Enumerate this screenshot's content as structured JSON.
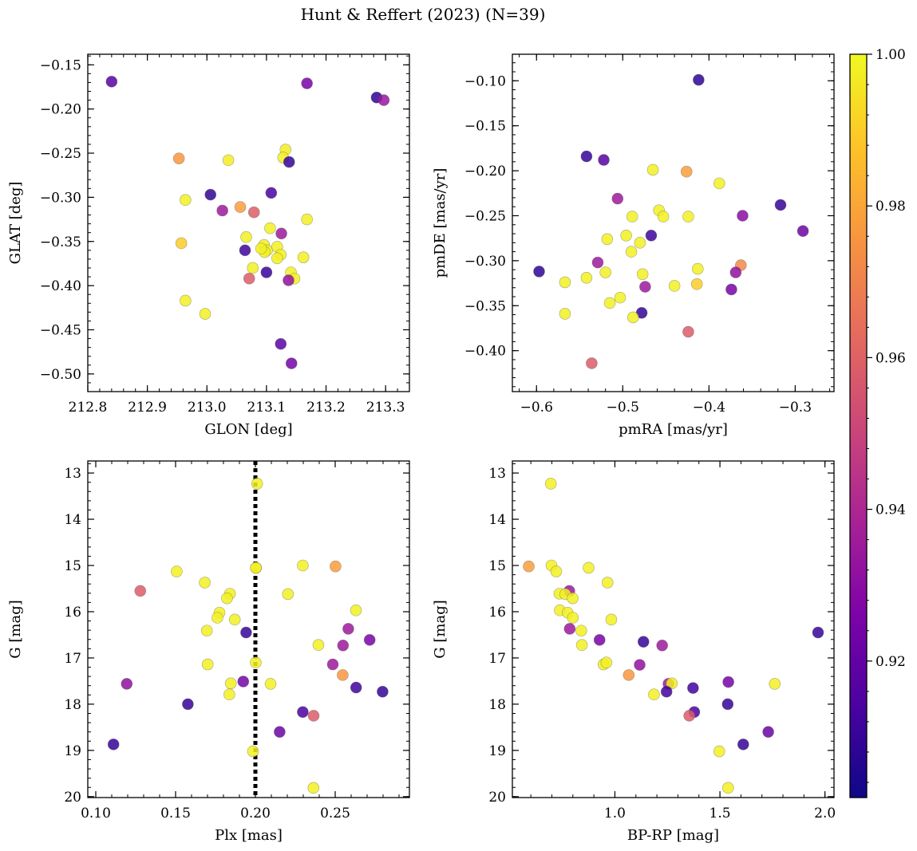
{
  "figure": {
    "title": "Hunt & Reffert (2023) (N=39)"
  },
  "colorbar": {
    "min": 0.902,
    "max": 1.0,
    "ticks": [
      0.92,
      0.94,
      0.96,
      0.98,
      1.0
    ],
    "tick_labels": [
      "0.92",
      "0.94",
      "0.96",
      "0.98",
      "1.00"
    ],
    "colormap": "plasma"
  },
  "chart_data": [
    {
      "type": "scatter",
      "xlabel": "GLON [deg]",
      "ylabel": "GLAT [deg]",
      "xlim": [
        212.8,
        213.34
      ],
      "ylim": [
        -0.52,
        -0.138
      ],
      "xticks": [
        212.8,
        212.9,
        213.0,
        213.1,
        213.2,
        213.3
      ],
      "xtick_labels": [
        "212.8",
        "212.9",
        "213.0",
        "213.1",
        "213.2",
        "213.3"
      ],
      "yticks": [
        -0.15,
        -0.2,
        -0.25,
        -0.3,
        -0.35,
        -0.4,
        -0.45,
        -0.5
      ],
      "ytick_labels": [
        "−0.15",
        "−0.20",
        "−0.25",
        "−0.30",
        "−0.35",
        "−0.40",
        "−0.45",
        "−0.50"
      ],
      "x": [
        212.84,
        213.168,
        213.285,
        213.297,
        212.953,
        213.036,
        213.132,
        213.128,
        213.138,
        213.006,
        213.108,
        212.964,
        213.026,
        213.056,
        213.079,
        213.168,
        213.125,
        213.066,
        213.096,
        213.101,
        213.118,
        212.957,
        213.097,
        213.064,
        213.106,
        213.124,
        213.118,
        213.162,
        213.141,
        213.077,
        213.147,
        213.1,
        213.071,
        213.137,
        212.964,
        212.997,
        213.124,
        213.142,
        213.091
      ],
      "y": [
        -0.169,
        -0.171,
        -0.187,
        -0.19,
        -0.256,
        -0.258,
        -0.246,
        -0.255,
        -0.26,
        -0.297,
        -0.295,
        -0.303,
        -0.315,
        -0.311,
        -0.317,
        -0.325,
        -0.341,
        -0.345,
        -0.354,
        -0.36,
        -0.356,
        -0.352,
        -0.362,
        -0.36,
        -0.335,
        -0.365,
        -0.369,
        -0.368,
        -0.385,
        -0.38,
        -0.392,
        -0.385,
        -0.392,
        -0.394,
        -0.417,
        -0.432,
        -0.466,
        -0.488,
        -0.358
      ],
      "c": [
        0.917,
        0.925,
        0.908,
        0.934,
        0.976,
        0.997,
        0.997,
        0.998,
        0.91,
        0.909,
        0.914,
        0.998,
        0.935,
        0.978,
        0.959,
        0.998,
        0.935,
        0.998,
        0.998,
        0.998,
        0.998,
        0.99,
        0.998,
        0.912,
        0.998,
        0.998,
        0.998,
        0.998,
        0.998,
        0.998,
        0.998,
        0.91,
        0.958,
        0.932,
        0.998,
        0.998,
        0.918,
        0.924,
        0.998
      ]
    },
    {
      "type": "scatter",
      "xlabel": "pmRA [mas/yr]",
      "ylabel": "pmDE [mas/yr]",
      "xlim": [
        -0.628,
        -0.255
      ],
      "ylim": [
        -0.4455,
        -0.0705
      ],
      "xticks": [
        -0.6,
        -0.5,
        -0.4,
        -0.3
      ],
      "xtick_labels": [
        "−0.6",
        "−0.5",
        "−0.4",
        "−0.3"
      ],
      "yticks": [
        -0.1,
        -0.15,
        -0.2,
        -0.25,
        -0.3,
        -0.35,
        -0.4
      ],
      "ytick_labels": [
        "−0.10",
        "−0.15",
        "−0.20",
        "−0.25",
        "−0.30",
        "−0.35",
        "−0.40"
      ],
      "x": [
        -0.412,
        -0.542,
        -0.522,
        -0.465,
        -0.426,
        -0.388,
        -0.506,
        -0.317,
        -0.291,
        -0.361,
        -0.458,
        -0.489,
        -0.467,
        -0.453,
        -0.424,
        -0.518,
        -0.496,
        -0.48,
        -0.49,
        -0.597,
        -0.529,
        -0.413,
        -0.363,
        -0.369,
        -0.52,
        -0.567,
        -0.542,
        -0.477,
        -0.474,
        -0.44,
        -0.414,
        -0.374,
        -0.503,
        -0.515,
        -0.567,
        -0.478,
        -0.488,
        -0.424,
        -0.536
      ],
      "y": [
        -0.099,
        -0.184,
        -0.188,
        -0.199,
        -0.201,
        -0.214,
        -0.231,
        -0.238,
        -0.267,
        -0.25,
        -0.244,
        -0.251,
        -0.272,
        -0.251,
        -0.251,
        -0.276,
        -0.272,
        -0.28,
        -0.29,
        -0.312,
        -0.302,
        -0.309,
        -0.305,
        -0.313,
        -0.313,
        -0.324,
        -0.319,
        -0.315,
        -0.329,
        -0.328,
        -0.326,
        -0.332,
        -0.341,
        -0.347,
        -0.359,
        -0.358,
        -0.363,
        -0.379,
        -0.414
      ],
      "c": [
        0.908,
        0.91,
        0.917,
        0.998,
        0.978,
        0.998,
        0.935,
        0.91,
        0.922,
        0.93,
        0.998,
        0.998,
        0.912,
        0.998,
        0.998,
        0.998,
        0.998,
        0.998,
        0.998,
        0.908,
        0.935,
        0.998,
        0.972,
        0.932,
        0.998,
        0.998,
        0.998,
        0.998,
        0.935,
        0.998,
        0.99,
        0.924,
        0.998,
        0.998,
        0.998,
        0.91,
        0.998,
        0.958,
        0.958
      ]
    },
    {
      "type": "scatter",
      "xlabel": "Plx [mas]",
      "ylabel": "G [mag]",
      "xlim": [
        0.095,
        0.2965
      ],
      "ylim": [
        20.02,
        12.74
      ],
      "xticks": [
        0.1,
        0.15,
        0.2,
        0.25
      ],
      "xtick_labels": [
        "0.10",
        "0.15",
        "0.20",
        "0.25"
      ],
      "yticks": [
        13,
        14,
        15,
        16,
        17,
        18,
        19,
        20
      ],
      "ytick_labels": [
        "13",
        "14",
        "15",
        "16",
        "17",
        "18",
        "19",
        "20"
      ],
      "vline": 0.2,
      "x": [
        0.2011,
        0.2502,
        0.2297,
        0.1507,
        0.2004,
        0.1683,
        0.1279,
        0.1841,
        0.2204,
        0.1822,
        0.263,
        0.1775,
        0.1871,
        0.1762,
        0.2582,
        0.1696,
        0.1942,
        0.2716,
        0.2549,
        0.1701,
        0.2485,
        0.2002,
        0.2547,
        0.1194,
        0.1846,
        0.2095,
        0.1924,
        0.2631,
        0.1837,
        0.2797,
        0.1577,
        0.2297,
        0.2365,
        0.2152,
        0.2364,
        0.1111,
        0.1985,
        0.2003,
        0.2395
      ],
      "y": [
        13.23,
        15.02,
        15.0,
        15.13,
        15.05,
        15.37,
        15.55,
        15.61,
        15.62,
        15.71,
        15.97,
        16.02,
        16.17,
        16.13,
        16.37,
        16.41,
        16.45,
        16.61,
        16.73,
        17.14,
        17.14,
        17.1,
        17.37,
        17.56,
        17.55,
        17.56,
        17.51,
        17.64,
        17.79,
        17.73,
        18.0,
        18.17,
        18.25,
        18.6,
        19.81,
        18.87,
        19.02,
        15.05,
        16.72
      ],
      "c": [
        0.998,
        0.978,
        0.998,
        0.998,
        0.998,
        0.998,
        0.958,
        0.998,
        0.998,
        0.998,
        0.998,
        0.998,
        0.998,
        0.998,
        0.935,
        0.998,
        0.91,
        0.925,
        0.935,
        0.998,
        0.935,
        0.998,
        0.976,
        0.932,
        0.998,
        0.998,
        0.924,
        0.912,
        0.998,
        0.91,
        0.91,
        0.914,
        0.958,
        0.922,
        0.998,
        0.91,
        0.998,
        0.998,
        0.998
      ]
    },
    {
      "type": "scatter",
      "xlabel": "BP-RP [mag]",
      "ylabel": "G [mag]",
      "xlim": [
        0.512,
        2.043
      ],
      "ylim": [
        20.02,
        12.74
      ],
      "xticks": [
        1.0,
        1.5,
        2.0
      ],
      "xtick_labels": [
        "1.0",
        "1.5",
        "2.0"
      ],
      "yticks": [
        13,
        14,
        15,
        16,
        17,
        18,
        19,
        20
      ],
      "ytick_labels": [
        "13",
        "14",
        "15",
        "16",
        "17",
        "18",
        "19",
        "20"
      ],
      "x": [
        0.695,
        0.59,
        0.698,
        0.721,
        0.875,
        0.965,
        0.783,
        0.736,
        0.764,
        0.799,
        0.738,
        0.775,
        0.983,
        0.8,
        0.785,
        0.84,
        1.967,
        0.927,
        1.136,
        0.843,
        1.225,
        0.946,
        0.96,
        1.118,
        1.066,
        1.255,
        1.54,
        1.761,
        1.271,
        1.186,
        1.372,
        1.537,
        1.378,
        1.354,
        1.73,
        1.611,
        1.497,
        1.539,
        1.246
      ],
      "y": [
        13.23,
        15.02,
        15.0,
        15.13,
        15.05,
        15.37,
        15.55,
        15.61,
        15.62,
        15.71,
        15.97,
        16.02,
        16.17,
        16.13,
        16.37,
        16.41,
        16.45,
        16.61,
        16.65,
        16.72,
        16.73,
        17.14,
        17.1,
        17.15,
        17.37,
        17.56,
        17.52,
        17.56,
        17.55,
        17.79,
        17.65,
        18.0,
        18.17,
        18.25,
        18.6,
        18.87,
        19.02,
        19.81,
        17.73
      ],
      "c": [
        0.998,
        0.978,
        0.998,
        0.998,
        0.998,
        0.998,
        0.935,
        0.998,
        0.998,
        0.998,
        0.998,
        0.998,
        0.998,
        0.998,
        0.935,
        0.998,
        0.91,
        0.925,
        0.91,
        0.998,
        0.935,
        0.998,
        0.998,
        0.932,
        0.976,
        0.935,
        0.924,
        0.998,
        0.998,
        0.998,
        0.912,
        0.91,
        0.914,
        0.958,
        0.922,
        0.91,
        0.998,
        0.998,
        0.912
      ]
    }
  ]
}
